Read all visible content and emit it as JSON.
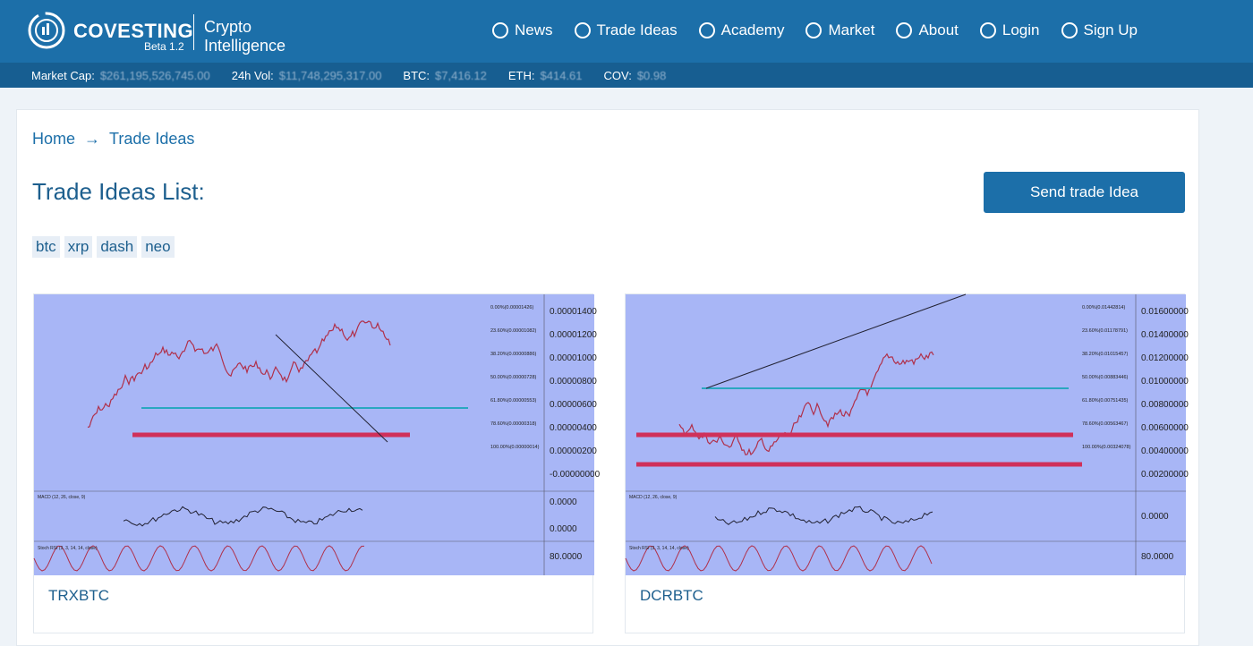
{
  "header": {
    "brand": "COVESTING",
    "version": "Beta 1.2",
    "tagline_1": "Crypto",
    "tagline_2": "Intelligence",
    "nav": [
      "News",
      "Trade Ideas",
      "Academy",
      "Market",
      "About",
      "Login",
      "Sign Up"
    ]
  },
  "ticker": [
    {
      "label": "Market Cap:",
      "value": "$261,195,526,745.00"
    },
    {
      "label": "24h Vol:",
      "value": "$11,748,295,317.00"
    },
    {
      "label": "BTC:",
      "value": "$7,416.12"
    },
    {
      "label": "ETH:",
      "value": "$414.61"
    },
    {
      "label": "COV:",
      "value": "$0.98"
    }
  ],
  "breadcrumb": [
    "Home",
    "Trade Ideas"
  ],
  "page_title": "Trade Ideas List:",
  "send_button": "Send trade Idea",
  "tags": [
    "btc",
    "xrp",
    "dash",
    "neo"
  ],
  "cards": [
    {
      "title": "TRXBTC",
      "axis_labels": [
        "0.00001400",
        "0.00001200",
        "0.00001000",
        "0.00000800",
        "0.00000600",
        "0.00000400",
        "0.00000200",
        "-0.00000000"
      ],
      "fib_labels": [
        "0.00%(0.00001426)",
        "23.60%(0.00001082)",
        "38.20%(0.00000886)",
        "50.00%(0.00000728)",
        "61.80%(0.00000553)",
        "78.60%(0.00000318)",
        "100.00%(0.00000014)"
      ],
      "macd_label": "MACD (12, 26, close, 9)",
      "macd_axis": [
        "0.0000",
        "0.0000"
      ],
      "stoch_label": "Stoch RSI (3, 3, 14, 14, close)",
      "stoch_axis": "80.0000"
    },
    {
      "title": "DCRBTC",
      "axis_labels": [
        "0.01600000",
        "0.01400000",
        "0.01200000",
        "0.01000000",
        "0.00800000",
        "0.00600000",
        "0.00400000",
        "0.00200000"
      ],
      "fib_labels": [
        "0.00%(0.01442814)",
        "23.60%(0.01178791)",
        "38.20%(0.01015457)",
        "50.00%(0.00883446)",
        "61.80%(0.00751435)",
        "78.60%(0.00563467)",
        "100.00%(0.00324078)"
      ],
      "macd_label": "MACD (12, 26, close, 9)",
      "macd_axis": [
        "0.0000"
      ],
      "stoch_label": "Stoch RSI (3, 3, 14, 14, close)",
      "stoch_axis": "80.0000"
    }
  ]
}
